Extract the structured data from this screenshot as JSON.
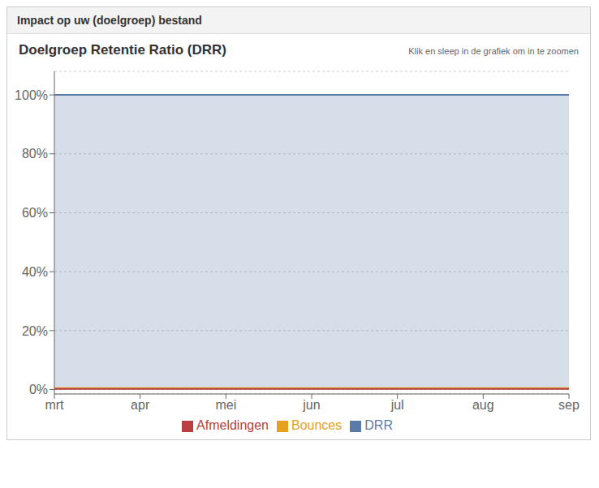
{
  "chart_data": {
    "type": "line",
    "header": "Impact op uw (doelgroep) bestand",
    "title": "Doelgroep Retentie Ratio (DRR)",
    "subtitle": "Klik en sleep in de grafiek om in te zoomen",
    "categories": [
      "mrt",
      "apr",
      "mei",
      "jun",
      "jul",
      "aug",
      "sep"
    ],
    "series": [
      {
        "name": "DRR",
        "type": "area",
        "color": "#5a7ba8",
        "values": [
          1.0,
          1.0,
          1.0,
          1.0,
          1.0,
          1.0,
          1.0
        ]
      },
      {
        "name": "Bounces",
        "type": "line",
        "color": "#e8a020",
        "values": [
          0.005,
          0.005,
          0.005,
          0.005,
          0.005,
          0.005,
          0.005
        ]
      },
      {
        "name": "Afmeldingen",
        "type": "line",
        "color": "#b84040",
        "values": [
          0.002,
          0.002,
          0.002,
          0.002,
          0.002,
          0.002,
          0.002
        ]
      }
    ],
    "ylim": [
      -0.015,
      1.08
    ],
    "yticks": [
      {
        "value": 0.0,
        "label": "0%"
      },
      {
        "value": 0.2,
        "label": "20%"
      },
      {
        "value": 0.4,
        "label": "40%"
      },
      {
        "value": 0.6,
        "label": "60%"
      },
      {
        "value": 0.8,
        "label": "80%"
      },
      {
        "value": 1.0,
        "label": "100%"
      }
    ],
    "grid": true,
    "legend": "bottom"
  }
}
